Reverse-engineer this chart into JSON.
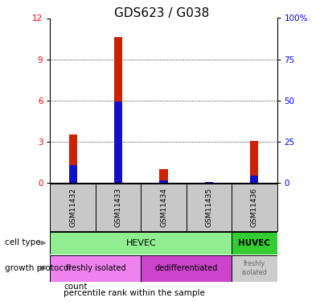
{
  "title": "GDS623 / G038",
  "samples": [
    "GSM11432",
    "GSM11433",
    "GSM11434",
    "GSM11435",
    "GSM11436"
  ],
  "count_values": [
    3.5,
    10.6,
    1.0,
    0.08,
    3.05
  ],
  "percentile_values": [
    1.3,
    5.9,
    0.15,
    0.08,
    0.55
  ],
  "ylim_left": [
    0,
    12
  ],
  "yticks_left": [
    0,
    3,
    6,
    9,
    12
  ],
  "ytick_labels_right": [
    "0",
    "25",
    "50",
    "75",
    "100%"
  ],
  "color_hevec": "#90EE90",
  "color_huvec": "#33CC33",
  "color_freshly": "#EE82EE",
  "color_dediff": "#CC44CC",
  "color_freshly_last": "#CCCCCC",
  "color_sample_bg": "#C8C8C8",
  "bar_color_count": "#CC2200",
  "bar_color_percentile": "#1111CC",
  "bar_width": 0.18
}
